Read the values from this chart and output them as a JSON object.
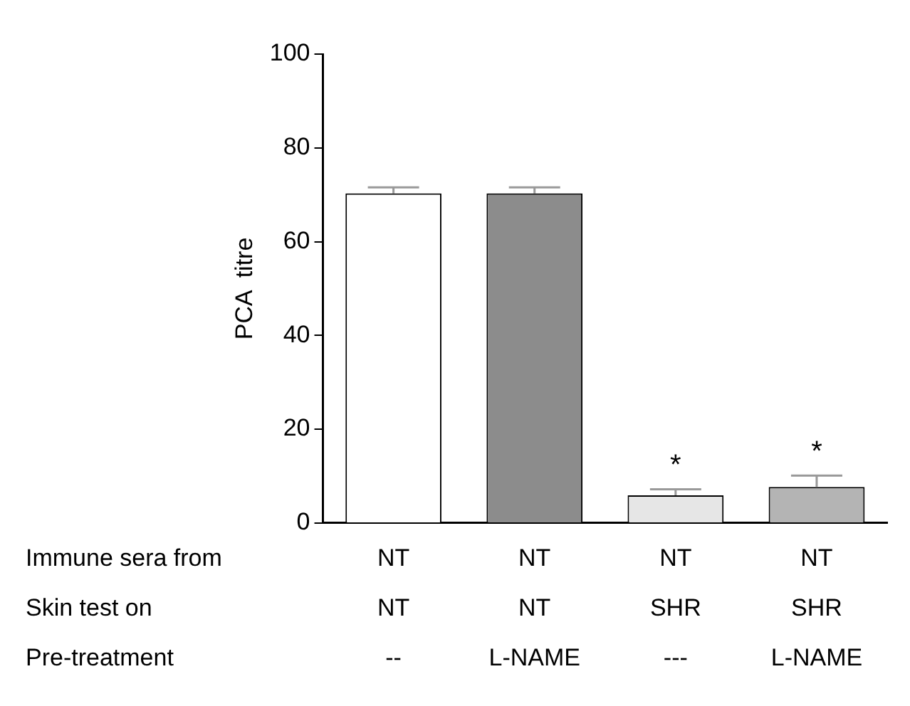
{
  "chart_data": {
    "type": "bar",
    "ylabel": "PCA  titre",
    "categories": [
      "NT\nNT\n--",
      "NT\nNT\nL-NAME",
      "NT\nSHR\n---",
      "NT\nSHR\nL-NAME"
    ],
    "values": [
      70.3,
      70.3,
      5.9,
      7.7
    ],
    "errors": [
      1.3,
      1.3,
      1.3,
      2.4
    ],
    "colors": [
      "#ffffff",
      "#8c8c8c",
      "#e6e6e6",
      "#b4b4b4"
    ],
    "ylim": [
      0,
      100
    ],
    "yticks": [
      0,
      20,
      40,
      60,
      80,
      100
    ],
    "grid": false,
    "legend": false,
    "value_labels": [
      null,
      null,
      "*",
      "*"
    ],
    "annotations": [
      "Immune sera from",
      "Skin test on",
      "Pre-treatment"
    ]
  }
}
